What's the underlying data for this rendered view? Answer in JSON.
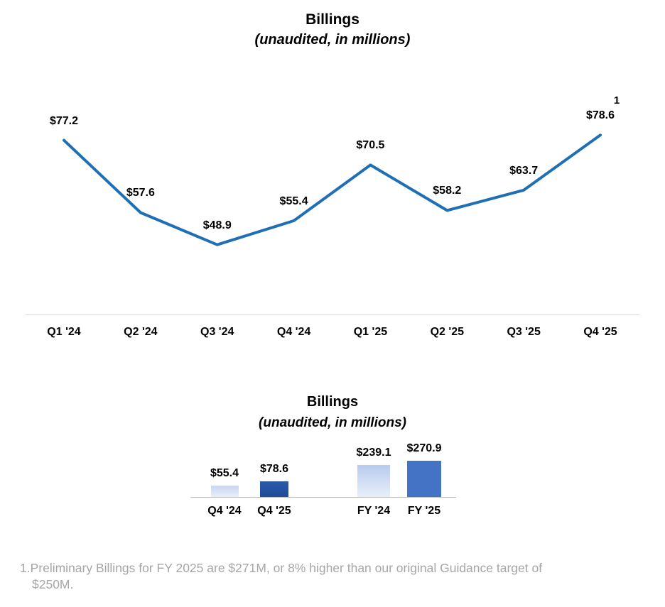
{
  "chart_data": [
    {
      "type": "line",
      "title": "Billings",
      "subtitle": "(unaudited, in millions)",
      "categories": [
        "Q1 '24",
        "Q2 '24",
        "Q3 '24",
        "Q4 '24",
        "Q1 '25",
        "Q2 '25",
        "Q3 '25",
        "Q4 '25"
      ],
      "values": [
        77.2,
        57.6,
        48.9,
        55.4,
        70.5,
        58.2,
        63.7,
        78.6
      ],
      "labels": [
        "$77.2",
        "$57.6",
        "$48.9",
        "$55.4",
        "$70.5",
        "$58.2",
        "$63.7",
        "$78.6"
      ],
      "footnote_marker": "1",
      "line_color": "#1F6FB5",
      "axis_color": "#D9D9D9",
      "ylim": [
        30,
        90
      ],
      "grid": false,
      "legend": "none",
      "xlabel": "",
      "ylabel": ""
    },
    {
      "type": "bar",
      "title": "Billings",
      "subtitle": "(unaudited, in millions)",
      "categories": [
        "Q4 '24",
        "Q4 '25",
        "FY '24",
        "FY '25"
      ],
      "values": [
        55.4,
        78.6,
        239.1,
        270.9
      ],
      "labels": [
        "$55.4",
        "$78.6",
        "$239.1",
        "$270.9"
      ],
      "bar_colors": [
        {
          "top": "#C9D6F1",
          "bottom": "#E9EEF9"
        },
        {
          "top": "#2A5AA9",
          "bottom": "#1F4C98"
        },
        {
          "top": "#B7CBEE",
          "bottom": "#E9EFFA"
        },
        {
          "top": "#4472C4",
          "bottom": "#4472C4"
        }
      ],
      "axis_color": "#BFBFBF",
      "grid": false,
      "legend": "none",
      "xlabel": "",
      "ylabel": ""
    }
  ],
  "footnote": {
    "lines": [
      "1.Preliminary Billings for FY 2025 are $271M, or 8% higher than our original Guidance target of",
      "$250M."
    ],
    "color": "#A6A6A6"
  }
}
